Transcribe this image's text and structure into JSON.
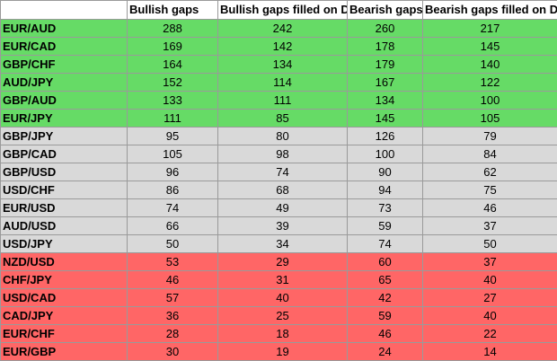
{
  "columns": [
    "",
    "Bullish gaps",
    "Bullish gaps filled on D",
    "Bearish gaps",
    "Bearish gaps filled on D"
  ],
  "groups": {
    "green": "#66db66",
    "grey": "#d9d9d9",
    "red": "#ff6666"
  },
  "rows": [
    {
      "pair": "EUR/AUD",
      "bullish": "288",
      "bullish_filled": "242",
      "bearish": "260",
      "bearish_filled": "217",
      "group": "green"
    },
    {
      "pair": "EUR/CAD",
      "bullish": "169",
      "bullish_filled": "142",
      "bearish": "178",
      "bearish_filled": "145",
      "group": "green"
    },
    {
      "pair": "GBP/CHF",
      "bullish": "164",
      "bullish_filled": "134",
      "bearish": "179",
      "bearish_filled": "140",
      "group": "green"
    },
    {
      "pair": "AUD/JPY",
      "bullish": "152",
      "bullish_filled": "114",
      "bearish": "167",
      "bearish_filled": "122",
      "group": "green"
    },
    {
      "pair": "GBP/AUD",
      "bullish": "133",
      "bullish_filled": "111",
      "bearish": "134",
      "bearish_filled": "100",
      "group": "green"
    },
    {
      "pair": "EUR/JPY",
      "bullish": "111",
      "bullish_filled": "85",
      "bearish": "145",
      "bearish_filled": "105",
      "group": "green"
    },
    {
      "pair": "GBP/JPY",
      "bullish": "95",
      "bullish_filled": "80",
      "bearish": "126",
      "bearish_filled": "79",
      "group": "grey"
    },
    {
      "pair": "GBP/CAD",
      "bullish": "105",
      "bullish_filled": "98",
      "bearish": "100",
      "bearish_filled": "84",
      "group": "grey"
    },
    {
      "pair": "GBP/USD",
      "bullish": "96",
      "bullish_filled": "74",
      "bearish": "90",
      "bearish_filled": "62",
      "group": "grey"
    },
    {
      "pair": "USD/CHF",
      "bullish": "86",
      "bullish_filled": "68",
      "bearish": "94",
      "bearish_filled": "75",
      "group": "grey"
    },
    {
      "pair": "EUR/USD",
      "bullish": "74",
      "bullish_filled": "49",
      "bearish": "73",
      "bearish_filled": "46",
      "group": "grey"
    },
    {
      "pair": "AUD/USD",
      "bullish": "66",
      "bullish_filled": "39",
      "bearish": "59",
      "bearish_filled": "37",
      "group": "grey"
    },
    {
      "pair": "USD/JPY",
      "bullish": "50",
      "bullish_filled": "34",
      "bearish": "74",
      "bearish_filled": "50",
      "group": "grey"
    },
    {
      "pair": "NZD/USD",
      "bullish": "53",
      "bullish_filled": "29",
      "bearish": "60",
      "bearish_filled": "37",
      "group": "red"
    },
    {
      "pair": "CHF/JPY",
      "bullish": "46",
      "bullish_filled": "31",
      "bearish": "65",
      "bearish_filled": "40",
      "group": "red"
    },
    {
      "pair": "USD/CAD",
      "bullish": "57",
      "bullish_filled": "40",
      "bearish": "42",
      "bearish_filled": "27",
      "group": "red"
    },
    {
      "pair": "CAD/JPY",
      "bullish": "36",
      "bullish_filled": "25",
      "bearish": "59",
      "bearish_filled": "40",
      "group": "red"
    },
    {
      "pair": "EUR/CHF",
      "bullish": "28",
      "bullish_filled": "18",
      "bearish": "46",
      "bearish_filled": "22",
      "group": "red"
    },
    {
      "pair": "EUR/GBP",
      "bullish": "30",
      "bullish_filled": "19",
      "bearish": "24",
      "bearish_filled": "14",
      "group": "red"
    }
  ]
}
